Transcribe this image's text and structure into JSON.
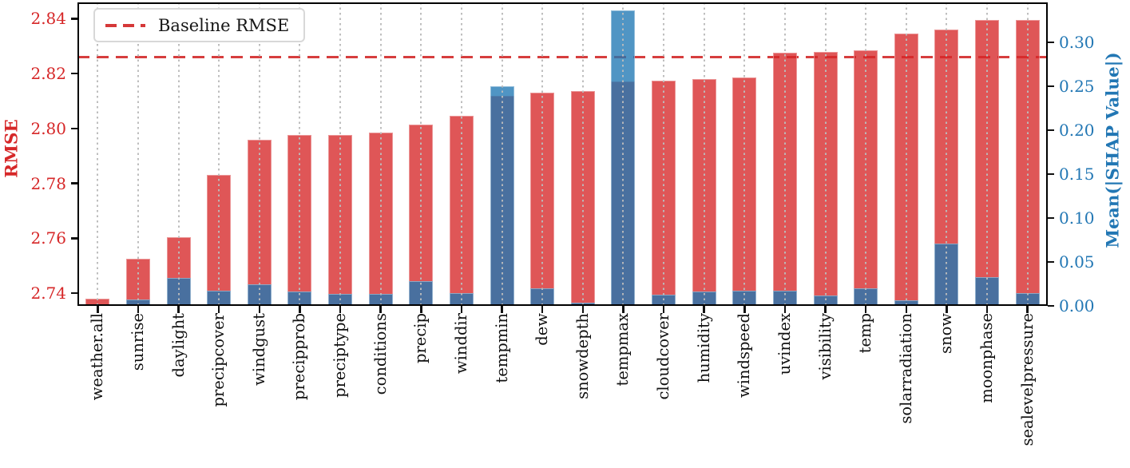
{
  "chart_data": {
    "type": "bar",
    "dual_axis": true,
    "title": "",
    "categories": [
      "weather.all",
      "sunrise",
      "daylight",
      "precipcover",
      "windgust",
      "precipprob",
      "preciptype",
      "conditions",
      "precip",
      "winddir",
      "tempmin",
      "dew",
      "snowdepth",
      "tempmax",
      "cloudcover",
      "humidity",
      "windspeed",
      "uvindex",
      "visibility",
      "temp",
      "solarradiation",
      "snow",
      "moonphase",
      "sealevelpressure"
    ],
    "series": [
      {
        "name": "RMSE",
        "axis": "left",
        "color": "rgba(214,39,40,0.78)",
        "values": [
          2.738,
          2.7525,
          2.7605,
          2.783,
          2.796,
          2.7975,
          2.7975,
          2.7985,
          2.8015,
          2.8045,
          2.812,
          2.813,
          2.8135,
          2.817,
          2.8175,
          2.818,
          2.8185,
          2.8275,
          2.828,
          2.8285,
          2.8345,
          2.836,
          2.8395,
          2.8395
        ]
      },
      {
        "name": "Mean(|SHAP Value|)",
        "axis": "right",
        "color": "rgba(31,119,180,0.78)",
        "values": [
          0.001,
          0.007,
          0.032,
          0.017,
          0.025,
          0.016,
          0.014,
          0.014,
          0.028,
          0.015,
          0.25,
          0.02,
          0.004,
          0.336,
          0.013,
          0.016,
          0.017,
          0.017,
          0.012,
          0.02,
          0.006,
          0.071,
          0.033,
          0.015
        ]
      }
    ],
    "baseline": {
      "label": "Baseline RMSE",
      "value": 2.826,
      "color": "#d62728",
      "style": "dashed"
    },
    "left_axis": {
      "label": "RMSE",
      "color": "#d62728",
      "ticks": [
        2.74,
        2.76,
        2.78,
        2.8,
        2.82,
        2.84
      ],
      "ylim": [
        2.7354,
        2.8459
      ]
    },
    "right_axis": {
      "label": "Mean(|SHAP Value|)",
      "color": "#2277b4",
      "ticks": [
        0.0,
        0.05,
        0.1,
        0.15,
        0.2,
        0.25,
        0.3
      ],
      "ylim": [
        0,
        0.3455
      ]
    },
    "grid": "vertical-dotted",
    "legend": {
      "position": "upper-left",
      "entries": [
        "Baseline RMSE"
      ]
    }
  }
}
